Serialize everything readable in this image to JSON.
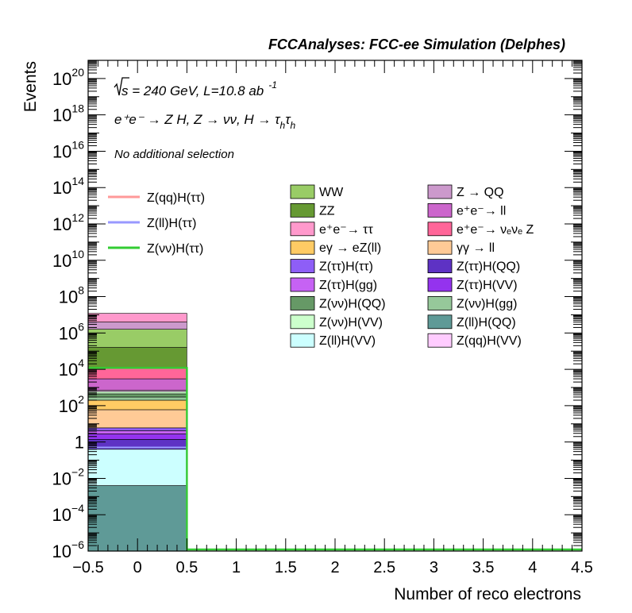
{
  "chart_data": {
    "type": "bar",
    "title": "FCCAnalyses: FCC-ee Simulation (Delphes)",
    "xlabel": "Number of reco electrons",
    "ylabel": "Events",
    "xlim": [
      -0.5,
      4.5
    ],
    "ylim": [
      1e-06,
      1e+21
    ],
    "yscale": "log",
    "x_ticks": [
      "−0.5",
      "0",
      "0.5",
      "1",
      "1.5",
      "2",
      "2.5",
      "3",
      "3.5",
      "4",
      "4.5"
    ],
    "y_ticks": [
      {
        "base": "10",
        "exp": "20"
      },
      {
        "base": "10",
        "exp": "18"
      },
      {
        "base": "10",
        "exp": "16"
      },
      {
        "base": "10",
        "exp": "14"
      },
      {
        "base": "10",
        "exp": "12"
      },
      {
        "base": "10",
        "exp": "10"
      },
      {
        "base": "10",
        "exp": "8"
      },
      {
        "base": "10",
        "exp": "6"
      },
      {
        "base": "10",
        "exp": "4"
      },
      {
        "base": "10",
        "exp": "2"
      },
      {
        "base": "1",
        "exp": ""
      },
      {
        "base": "10",
        "exp": "−2"
      },
      {
        "base": "10",
        "exp": "−4"
      },
      {
        "base": "10",
        "exp": "−6"
      }
    ],
    "annotations": {
      "energy_lumi": {
        "sqrt": "s",
        "rest": " = 240 GeV, L=10.8 ab",
        "sup": "-1"
      },
      "process": {
        "line": "e⁺e⁻ → Z H, Z → νν, H → τ",
        "sub": "h"
      },
      "selection": "No additional selection"
    },
    "bin": {
      "x_low": -0.5,
      "x_high": 0.5
    },
    "stack": [
      {
        "name": "Z(ll)H(QQ)",
        "color": "#5f9a97",
        "top": 0.004
      },
      {
        "name": "Z(ll)H(VV)",
        "color": "#ccffff",
        "top": 0.4
      },
      {
        "name": "Z(ττ)H(QQ)",
        "color": "#5e32c4",
        "top": 1.4
      },
      {
        "name": "Z(ττ)H(VV)",
        "color": "#9433ee",
        "top": 2.8
      },
      {
        "name": "Z(ττ)H(gg)",
        "color": "#c662f4",
        "top": 4.2
      },
      {
        "name": "Z(ττ)H(ττ)",
        "color": "#8e5ef7",
        "top": 6
      },
      {
        "name": "γγ → ll",
        "color": "#ffca96",
        "top": 60
      },
      {
        "name": "eγ → eZ(ll)",
        "color": "#ffcb64",
        "top": 200
      },
      {
        "name": "Z(νν)H(gg)",
        "color": "#96c89a",
        "top": 300
      },
      {
        "name": "Z(νν)H(QQ)",
        "color": "#669966",
        "top": 450
      },
      {
        "name": "Z(νν)H(VV)",
        "color": "#ccffcc",
        "top": 600
      },
      {
        "name": "Z(qq)H(VV)",
        "color": "#ffccff",
        "top": 700
      },
      {
        "name": "e⁺e⁻→ ll",
        "color": "#cc66cc",
        "top": 3000
      },
      {
        "name": "e⁺e⁻→ νₑνₑ Z",
        "color": "#ff6699",
        "top": 12000
      },
      {
        "name": "ZZ",
        "color": "#669933",
        "top": 160000
      },
      {
        "name": "WW",
        "color": "#99cc66",
        "top": 1600000
      },
      {
        "name": "Z → QQ",
        "color": "#cc99cc",
        "top": 4000000
      },
      {
        "name": "e⁺e⁻→ ττ",
        "color": "#ff99cc",
        "top": 12000000
      }
    ],
    "signals": [
      {
        "name": "Z(qq)H(ττ)",
        "color": "#ff9999",
        "value": 0.5
      },
      {
        "name": "Z(ll)H(ττ)",
        "color": "#9999ff",
        "value": 0.5
      },
      {
        "name": "Z(νν)H(ττ)",
        "color": "#33cc33",
        "value": 12000
      }
    ],
    "legend_bkg": [
      [
        "WW",
        "#99cc66"
      ],
      [
        "Z → QQ",
        "#cc99cc"
      ],
      [
        "ZZ",
        "#669933"
      ],
      [
        "e⁺e⁻→ ll",
        "#cc66cc"
      ],
      [
        "e⁺e⁻→ ττ",
        "#ff99cc"
      ],
      [
        "e⁺e⁻→ νₑνₑ Z",
        "#ff6699"
      ],
      [
        "eγ → eZ(ll)",
        "#ffcb64"
      ],
      [
        "γγ → ll",
        "#ffca96"
      ],
      [
        "Z(ττ)H(ττ)",
        "#8e5ef7"
      ],
      [
        "Z(ττ)H(QQ)",
        "#5e32c4"
      ],
      [
        "Z(ττ)H(gg)",
        "#c662f4"
      ],
      [
        "Z(ττ)H(VV)",
        "#9433ee"
      ],
      [
        "Z(νν)H(QQ)",
        "#669966"
      ],
      [
        "Z(νν)H(gg)",
        "#96c89a"
      ],
      [
        "Z(νν)H(VV)",
        "#ccffcc"
      ],
      [
        "Z(ll)H(QQ)",
        "#5f9a97"
      ],
      [
        "Z(ll)H(VV)",
        "#ccffff"
      ],
      [
        "Z(qq)H(VV)",
        "#ffccff"
      ]
    ],
    "grid": false,
    "legend_position": "top-right"
  }
}
